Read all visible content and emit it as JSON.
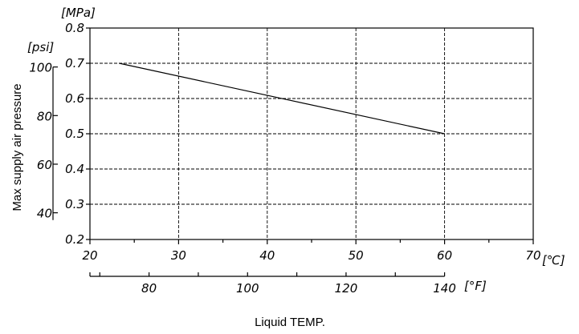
{
  "chart_data": {
    "type": "line",
    "title": "",
    "xlabel": "Liquid TEMP.",
    "ylabel": "Max supply air pressure",
    "x_unit": "[℃]",
    "x2_unit": "[°F]",
    "y_unit": "[MPa]",
    "y2_unit": "[psi]",
    "xlim": [
      20,
      70
    ],
    "ylim": [
      0.2,
      0.8
    ],
    "x_ticks": [
      20,
      30,
      40,
      50,
      60,
      70
    ],
    "y_ticks": [
      0.2,
      0.3,
      0.4,
      0.5,
      0.6,
      0.7,
      0.8
    ],
    "x_tick_labels": [
      "20",
      "30",
      "40",
      "50",
      "60",
      "70"
    ],
    "y_tick_labels": [
      "0.2",
      "0.3",
      "0.4",
      "0.5",
      "0.6",
      "0.7",
      "0.8"
    ],
    "x2_ticks": [
      80,
      100,
      120,
      140
    ],
    "x2_tick_labels": [
      "80",
      "100",
      "120",
      "140"
    ],
    "y2_ticks": [
      40,
      60,
      80,
      100
    ],
    "y2_tick_labels": [
      "40",
      "60",
      "80",
      "100"
    ],
    "grid": true,
    "series": [
      {
        "x": [
          23.3,
          60
        ],
        "y": [
          0.7,
          0.5
        ]
      }
    ]
  }
}
